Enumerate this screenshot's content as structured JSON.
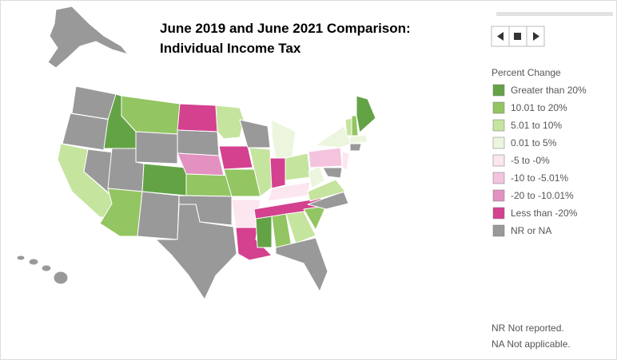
{
  "title": [
    "June 2019 and June 2021 Comparison:",
    "Individual Income Tax"
  ],
  "legend": {
    "title": "Percent Change",
    "items": [
      {
        "label": "Greater than 20%",
        "color": "#63a346"
      },
      {
        "label": "10.01 to 20%",
        "color": "#93c562"
      },
      {
        "label": "5.01 to 10%",
        "color": "#c5e49e"
      },
      {
        "label": "0.01 to 5%",
        "color": "#ecf6df"
      },
      {
        "label": "-5 to -0%",
        "color": "#fce6f0"
      },
      {
        "label": "-10 to -5.01%",
        "color": "#f4c4de"
      },
      {
        "label": "-20 to -10.01%",
        "color": "#e391c0"
      },
      {
        "label": "Less than -20%",
        "color": "#d4418e"
      },
      {
        "label": "NR or NA",
        "color": "#999999"
      }
    ]
  },
  "notes": [
    "NR Not reported.",
    "NA Not applicable."
  ]
}
